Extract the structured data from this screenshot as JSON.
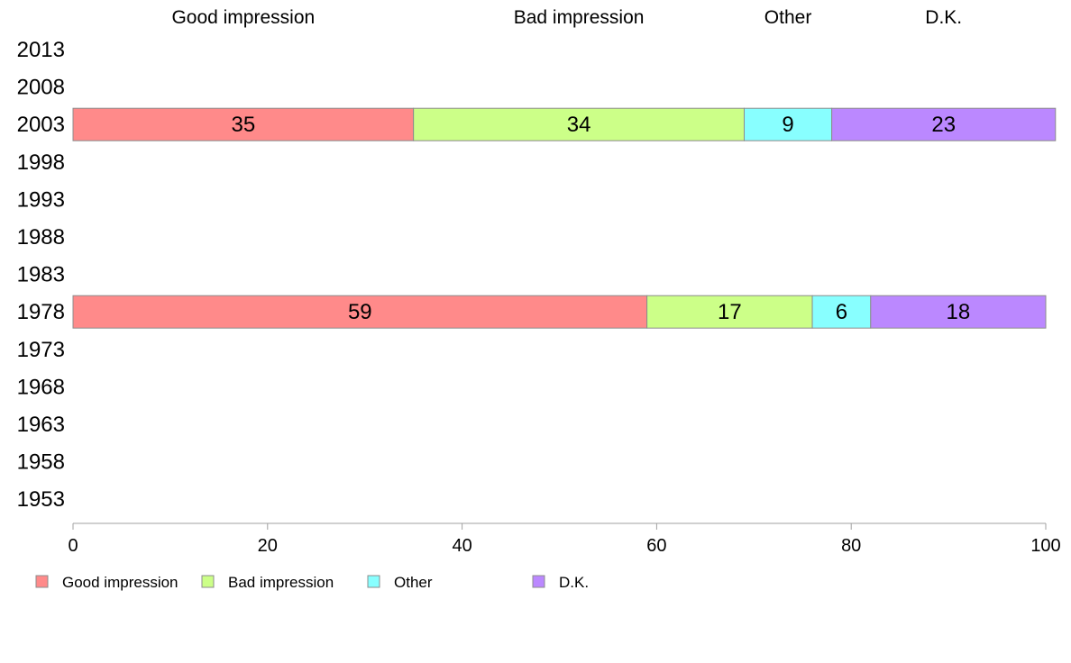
{
  "chart_data": {
    "type": "bar",
    "orientation": "horizontal",
    "stacked": true,
    "categories": [
      "2013",
      "2008",
      "2003",
      "1998",
      "1993",
      "1988",
      "1983",
      "1978",
      "1973",
      "1968",
      "1963",
      "1958",
      "1953"
    ],
    "series": [
      {
        "name": "Good impression",
        "color": "#FF8A8A",
        "values": [
          null,
          null,
          35,
          null,
          null,
          null,
          null,
          59,
          null,
          null,
          null,
          null,
          null
        ]
      },
      {
        "name": "Bad impression",
        "color": "#CCFF88",
        "values": [
          null,
          null,
          34,
          null,
          null,
          null,
          null,
          17,
          null,
          null,
          null,
          null,
          null
        ]
      },
      {
        "name": "Other",
        "color": "#88FFFF",
        "values": [
          null,
          null,
          9,
          null,
          null,
          null,
          null,
          6,
          null,
          null,
          null,
          null,
          null
        ]
      },
      {
        "name": "D.K.",
        "color": "#BB88FF",
        "values": [
          null,
          null,
          23,
          null,
          null,
          null,
          null,
          18,
          null,
          null,
          null,
          null,
          null
        ]
      }
    ],
    "xlim": [
      0,
      100
    ],
    "xticks": [
      0,
      20,
      40,
      60,
      80,
      100
    ],
    "top_labels": [
      "Good impression",
      "Bad impression",
      "Other",
      "D.K."
    ],
    "legend_position": "bottom-left",
    "grid": false
  }
}
